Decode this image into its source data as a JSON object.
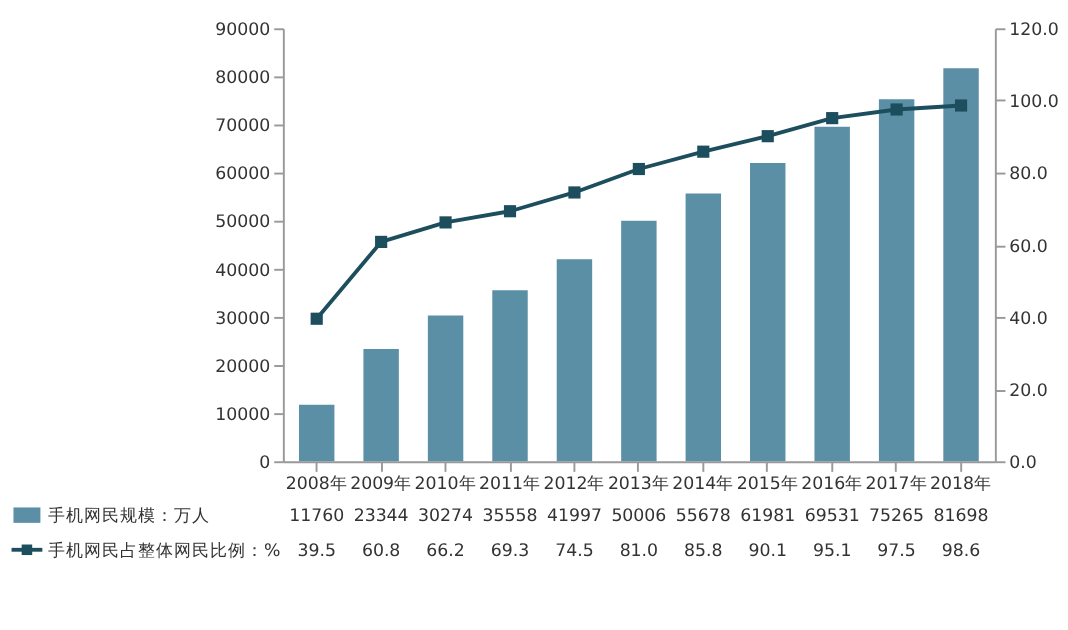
{
  "chart_data": {
    "type": "bar",
    "categories": [
      "2008年",
      "2009年",
      "2010年",
      "2011年",
      "2012年",
      "2013年",
      "2014年",
      "2015年",
      "2016年",
      "2017年",
      "2018年"
    ],
    "series": [
      {
        "name": "手机网民规模：万人",
        "color": "#5b8fa6",
        "values": [
          11760,
          23344,
          30274,
          35558,
          41997,
          50006,
          55678,
          61981,
          69531,
          75265,
          81698
        ]
      },
      {
        "name": "手机网民占整体网民比例：%",
        "type": "line",
        "axis": "y2",
        "color": "#1d4e5e",
        "values": [
          39.5,
          60.8,
          66.2,
          69.3,
          74.5,
          81.0,
          85.8,
          90.1,
          95.1,
          97.5,
          98.6
        ],
        "value_labels": [
          "39.5",
          "60.8",
          "66.2",
          "69.3",
          "74.5",
          "81.0",
          "85.8",
          "90.1",
          "95.1",
          "97.5",
          "98.6"
        ]
      }
    ],
    "ylim": [
      0,
      90000
    ],
    "yticks": [
      0,
      10000,
      20000,
      30000,
      40000,
      50000,
      60000,
      70000,
      80000,
      90000
    ],
    "y2lim": [
      0,
      120
    ],
    "y2ticks": [
      {
        "value": 0,
        "label": "0.0"
      },
      {
        "value": 20,
        "label": "20.0"
      },
      {
        "value": 40,
        "label": "40.0"
      },
      {
        "value": 60,
        "label": "60.0"
      },
      {
        "value": 80,
        "label": "80.0"
      },
      {
        "value": 100,
        "label": "100.0"
      },
      {
        "value": 120,
        "label": "120.0"
      }
    ],
    "marker": "square",
    "line_style": "solid",
    "grid": false,
    "legend": "bottom",
    "data_labels": true
  }
}
